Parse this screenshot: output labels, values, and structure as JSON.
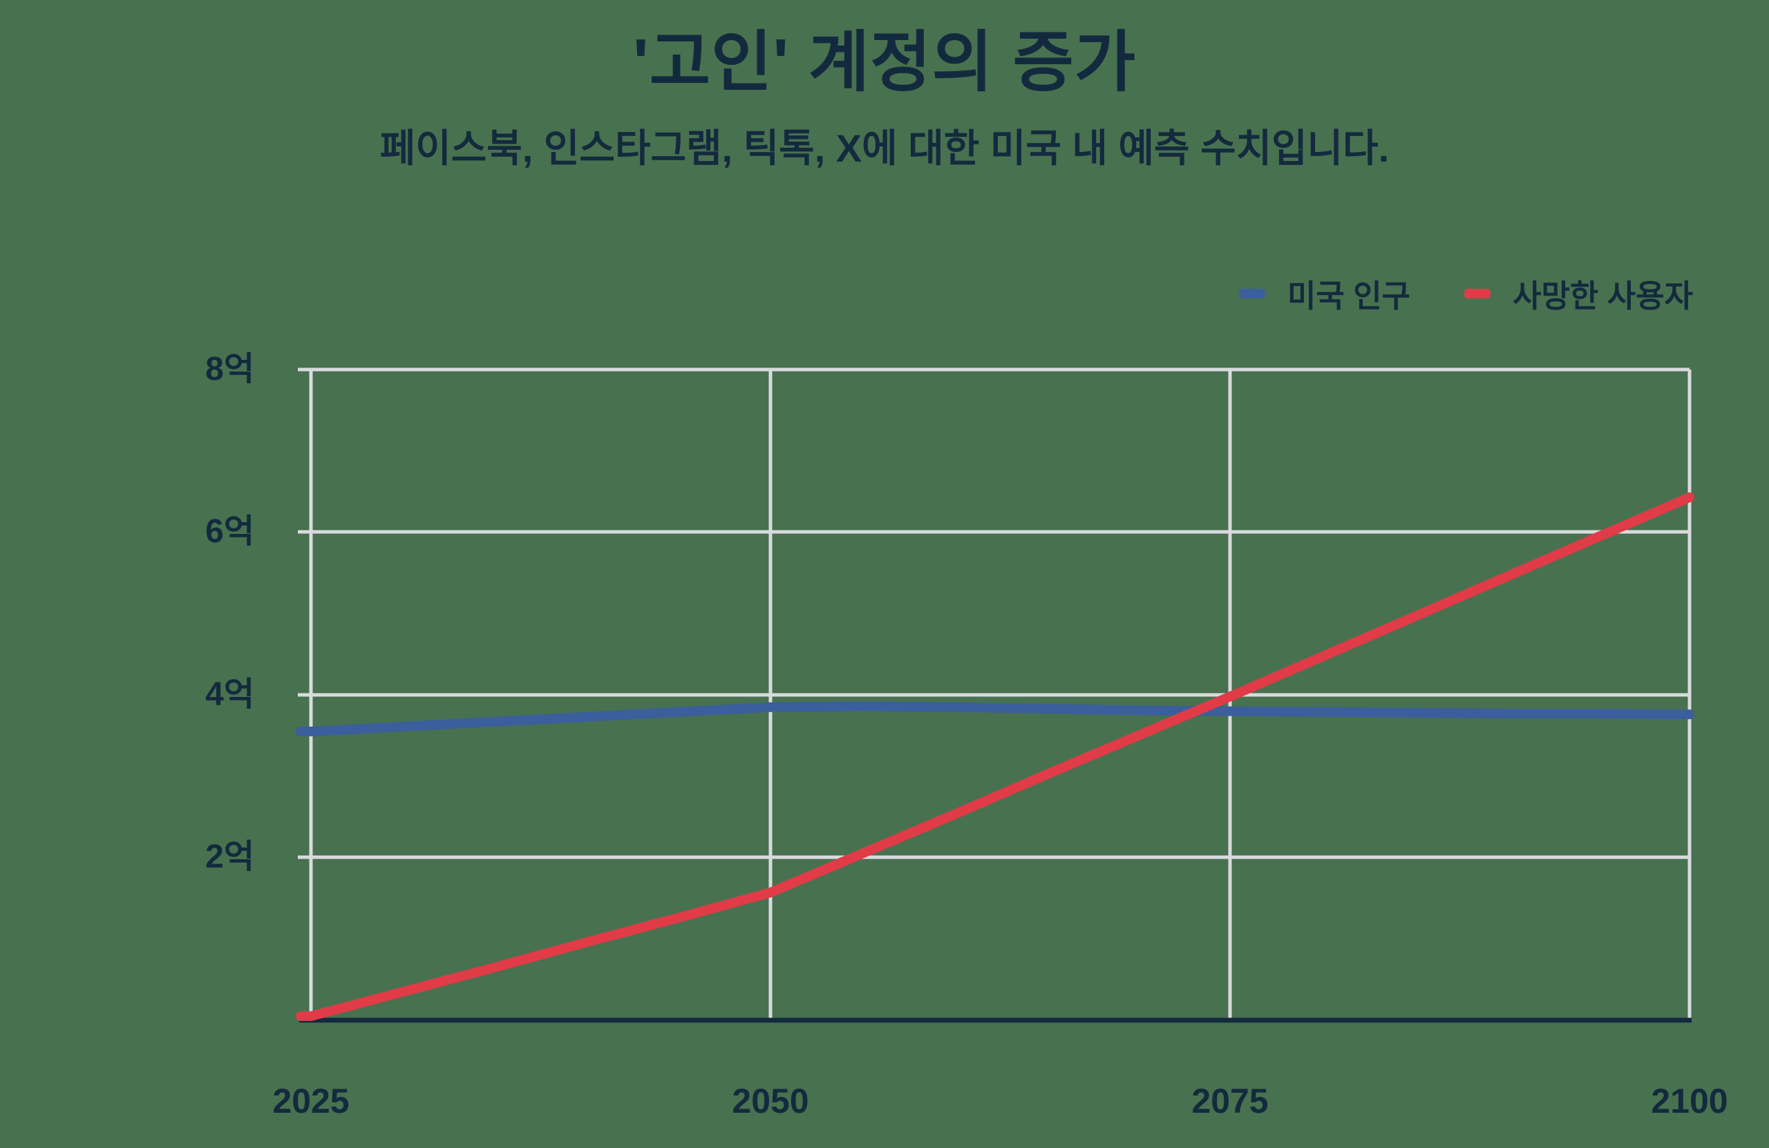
{
  "page": {
    "background_color": "#48714f",
    "text_color": "#132a3e",
    "grid_color": "#d9dbde"
  },
  "chart": {
    "title": "'고인' 계정의 증가",
    "subtitle": "페이스북, 인스타그램, 틱톡, X에 대한 미국 내 예측 수치입니다.",
    "legend": {
      "items": [
        {
          "label": "미국 인구",
          "color": "#3b5e9d"
        },
        {
          "label": "사망한 사용자",
          "color": "#e13b48"
        }
      ]
    },
    "y_ticks": [
      "8억",
      "6억",
      "4억",
      "2억"
    ],
    "x_ticks": [
      "2025",
      "2050",
      "2075",
      "2100"
    ]
  },
  "chart_data": {
    "type": "line",
    "title": "'고인' 계정의 증가",
    "subtitle": "페이스북, 인스타그램, 틱톡, X에 대한 미국 내 예측 수치입니다.",
    "unit": "억 (hundreds of millions)",
    "x": [
      2025,
      2030,
      2035,
      2040,
      2045,
      2050,
      2055,
      2060,
      2065,
      2070,
      2075,
      2080,
      2085,
      2090,
      2095,
      2100
    ],
    "series": [
      {
        "name": "미국 인구",
        "color": "#3b5e9d",
        "values": [
          3.55,
          3.61,
          3.67,
          3.73,
          3.79,
          3.85,
          3.86,
          3.85,
          3.83,
          3.81,
          3.8,
          3.79,
          3.78,
          3.77,
          3.77,
          3.76
        ]
      },
      {
        "name": "사망한 사용자",
        "color": "#e13b48",
        "values": [
          0.05,
          0.35,
          0.65,
          0.96,
          1.26,
          1.57,
          2.05,
          2.53,
          3.02,
          3.5,
          3.98,
          4.47,
          4.96,
          5.45,
          5.94,
          6.43
        ]
      }
    ],
    "xlabel": "",
    "ylabel": "",
    "xlim": [
      2025,
      2100
    ],
    "ylim": [
      0,
      8
    ],
    "y_tick_values": [
      2,
      4,
      6,
      8
    ],
    "y_tick_labels": [
      "2억",
      "4억",
      "6억",
      "8억"
    ],
    "x_tick_values": [
      2025,
      2050,
      2075,
      2100
    ],
    "grid": true,
    "legend_position": "top-right"
  }
}
